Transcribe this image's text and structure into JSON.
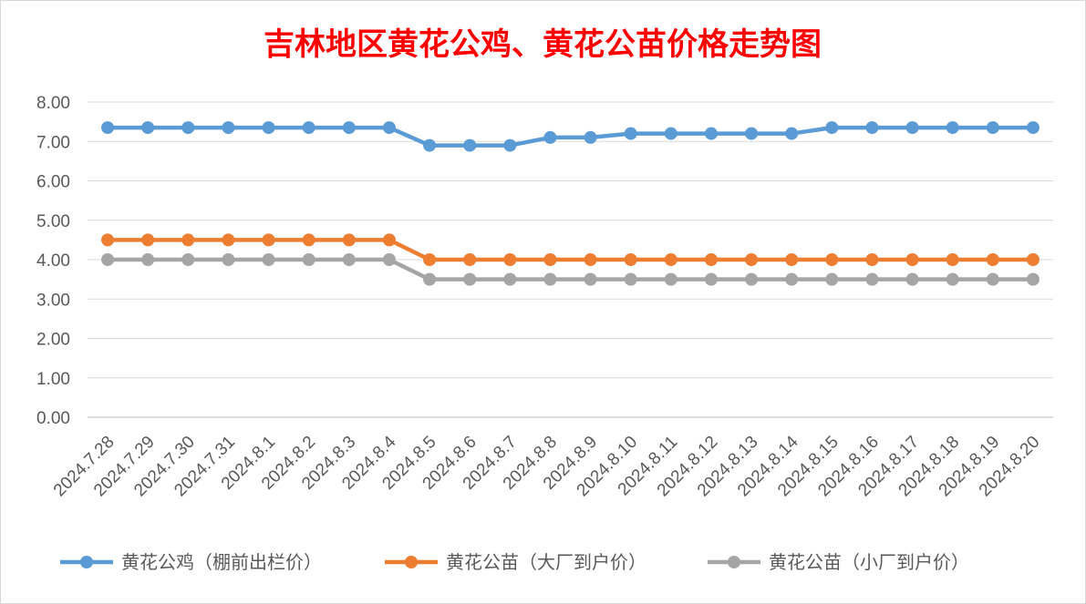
{
  "chart_data": {
    "type": "line",
    "title": "吉林地区黄花公鸡、黄花公苗价格走势图",
    "xlabel": "",
    "ylabel": "",
    "ylim": [
      0,
      8
    ],
    "y_ticks": [
      "0.00",
      "1.00",
      "2.00",
      "3.00",
      "4.00",
      "5.00",
      "6.00",
      "7.00",
      "8.00"
    ],
    "grid": true,
    "legend_position": "bottom",
    "categories": [
      "2024.7.28",
      "2024.7.29",
      "2024.7.30",
      "2024.7.31",
      "2024.8.1",
      "2024.8.2",
      "2024.8.3",
      "2024.8.4",
      "2024.8.5",
      "2024.8.6",
      "2024.8.7",
      "2024.8.8",
      "2024.8.9",
      "2024.8.10",
      "2024.8.11",
      "2024.8.12",
      "2024.8.13",
      "2024.8.14",
      "2024.8.15",
      "2024.8.16",
      "2024.8.17",
      "2024.8.18",
      "2024.8.19",
      "2024.8.20"
    ],
    "series": [
      {
        "name": "黄花公鸡（棚前出栏价）",
        "color": "#5b9bd5",
        "values": [
          7.35,
          7.35,
          7.35,
          7.35,
          7.35,
          7.35,
          7.35,
          7.35,
          6.9,
          6.9,
          6.9,
          7.1,
          7.1,
          7.2,
          7.2,
          7.2,
          7.2,
          7.2,
          7.35,
          7.35,
          7.35,
          7.35,
          7.35,
          7.35
        ]
      },
      {
        "name": "黄花公苗（大厂到户价）",
        "color": "#ed7d31",
        "values": [
          4.5,
          4.5,
          4.5,
          4.5,
          4.5,
          4.5,
          4.5,
          4.5,
          4.0,
          4.0,
          4.0,
          4.0,
          4.0,
          4.0,
          4.0,
          4.0,
          4.0,
          4.0,
          4.0,
          4.0,
          4.0,
          4.0,
          4.0,
          4.0
        ]
      },
      {
        "name": "黄花公苗（小厂到户价）",
        "color": "#a5a5a5",
        "values": [
          4.0,
          4.0,
          4.0,
          4.0,
          4.0,
          4.0,
          4.0,
          4.0,
          3.5,
          3.5,
          3.5,
          3.5,
          3.5,
          3.5,
          3.5,
          3.5,
          3.5,
          3.5,
          3.5,
          3.5,
          3.5,
          3.5,
          3.5,
          3.5
        ]
      }
    ]
  }
}
